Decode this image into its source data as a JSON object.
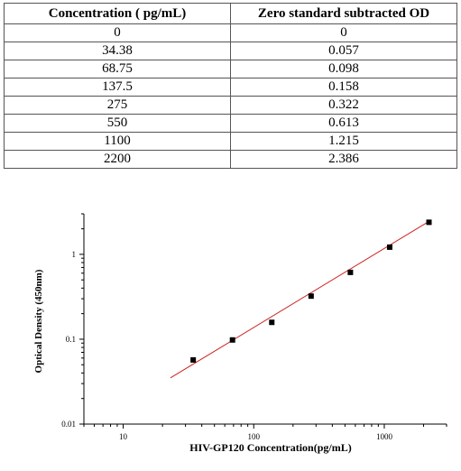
{
  "table": {
    "headers": [
      "Concentration ( pg/mL)",
      "Zero standard subtracted OD"
    ],
    "rows": [
      [
        "0",
        "0"
      ],
      [
        "34.38",
        "0.057"
      ],
      [
        "68.75",
        "0.098"
      ],
      [
        "137.5",
        "0.158"
      ],
      [
        "275",
        "0.322"
      ],
      [
        "550",
        "0.613"
      ],
      [
        "1100",
        "1.215"
      ],
      [
        "2200",
        "2.386"
      ]
    ]
  },
  "chart_data": {
    "type": "scatter",
    "xlabel": "HIV-GP120  Concentration(pg/mL)",
    "ylabel": "Optical Density (450nm)",
    "x_scale": "log",
    "y_scale": "log",
    "xlim": [
      5,
      3000
    ],
    "ylim": [
      0.01,
      3
    ],
    "x_ticks": [
      {
        "value": 10,
        "label": "10"
      },
      {
        "value": 100,
        "label": "100"
      },
      {
        "value": 1000,
        "label": "1000"
      }
    ],
    "y_ticks": [
      {
        "value": 0.01,
        "label": "0.01"
      },
      {
        "value": 0.1,
        "label": "0.1"
      },
      {
        "value": 1,
        "label": "1"
      }
    ],
    "points": [
      {
        "x": 34.38,
        "y": 0.057
      },
      {
        "x": 68.75,
        "y": 0.098
      },
      {
        "x": 137.5,
        "y": 0.158
      },
      {
        "x": 275,
        "y": 0.322
      },
      {
        "x": 550,
        "y": 0.613
      },
      {
        "x": 1100,
        "y": 1.215
      },
      {
        "x": 2200,
        "y": 2.386
      }
    ],
    "fit_line": {
      "x": [
        23,
        2300
      ],
      "y": [
        0.035,
        2.55
      ]
    },
    "colors": {
      "points": "#000000",
      "fit_line": "#cc1f1f"
    },
    "grid": false
  }
}
